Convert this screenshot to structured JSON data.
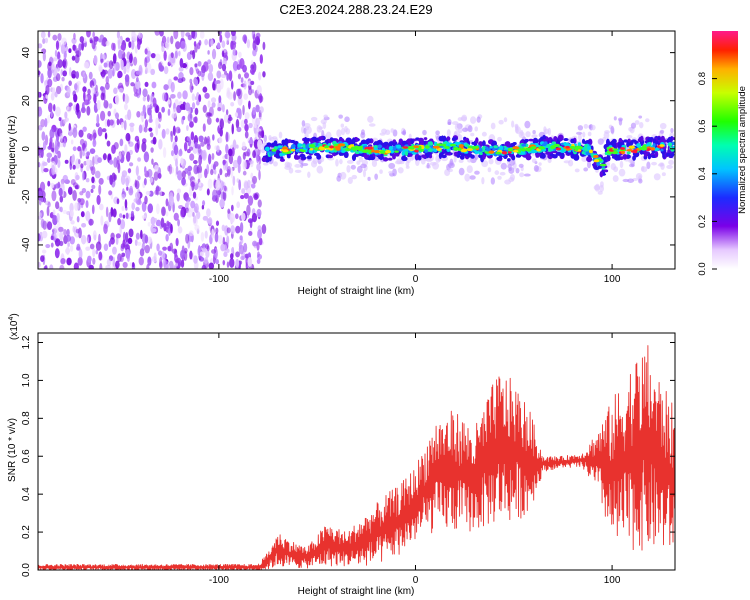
{
  "title": "C2E3.2024.288.23.24.E29",
  "chart_data": [
    {
      "type": "heatmap",
      "xlabel": "Height of straight line (km)",
      "ylabel": "Frequency (Hz)",
      "xlim": [
        -192,
        132
      ],
      "ylim": [
        -50,
        49
      ],
      "xticks": [
        -100,
        0,
        100
      ],
      "xtick_labels": [
        "-100",
        "0",
        "100"
      ],
      "yticks": [
        -40,
        -20,
        0,
        20,
        40
      ],
      "ytick_labels": [
        "-40",
        "-20",
        "0",
        "20",
        "40"
      ],
      "colorbar": {
        "label": "Normalized spectral amplitude",
        "range": [
          0,
          1
        ],
        "ticks": [
          0,
          0.2,
          0.4,
          0.6,
          0.8
        ],
        "tick_labels": [
          "0.0",
          "0.2",
          "0.4",
          "0.6",
          "0.8"
        ],
        "colormap": "rainbow"
      },
      "noise_region_x": [
        -192,
        -77
      ],
      "signal_region_x": [
        -77,
        132
      ],
      "signal_center_freq": 0,
      "grid": false
    },
    {
      "type": "line",
      "xlabel": "Height of straight line (km)",
      "ylabel": "SNR (10 * v/v)",
      "y_scale_label": "(x10",
      "y_scale_exponent": "4",
      "xlim": [
        -192,
        132
      ],
      "ylim": [
        0,
        1.25
      ],
      "xticks": [
        -100,
        0,
        100
      ],
      "xtick_labels": [
        "-100",
        "0",
        "100"
      ],
      "yticks": [
        0,
        0.2,
        0.4,
        0.6,
        0.8,
        1.0,
        1.2
      ],
      "ytick_labels": [
        "0.0",
        "0.2",
        "0.4",
        "0.6",
        "0.8",
        "1.0",
        "1.2"
      ],
      "color": "#e8322e",
      "envelope": [
        {
          "x": -192,
          "low": 0.0,
          "high": 0.03
        },
        {
          "x": -80,
          "low": 0.0,
          "high": 0.03
        },
        {
          "x": -76,
          "low": 0.0,
          "high": 0.08
        },
        {
          "x": -70,
          "low": 0.02,
          "high": 0.2
        },
        {
          "x": -62,
          "low": 0.01,
          "high": 0.15
        },
        {
          "x": -55,
          "low": 0.01,
          "high": 0.12
        },
        {
          "x": -45,
          "low": 0.02,
          "high": 0.25
        },
        {
          "x": -35,
          "low": 0.02,
          "high": 0.2
        },
        {
          "x": -25,
          "low": 0.02,
          "high": 0.3
        },
        {
          "x": -15,
          "low": 0.04,
          "high": 0.4
        },
        {
          "x": -8,
          "low": 0.08,
          "high": 0.45
        },
        {
          "x": 0,
          "low": 0.15,
          "high": 0.55
        },
        {
          "x": 10,
          "low": 0.2,
          "high": 0.8
        },
        {
          "x": 20,
          "low": 0.2,
          "high": 0.85
        },
        {
          "x": 30,
          "low": 0.2,
          "high": 0.75
        },
        {
          "x": 42,
          "low": 0.25,
          "high": 1.05
        },
        {
          "x": 50,
          "low": 0.25,
          "high": 1.0
        },
        {
          "x": 58,
          "low": 0.3,
          "high": 0.85
        },
        {
          "x": 65,
          "low": 0.52,
          "high": 0.6
        },
        {
          "x": 75,
          "low": 0.54,
          "high": 0.6
        },
        {
          "x": 85,
          "low": 0.54,
          "high": 0.62
        },
        {
          "x": 93,
          "low": 0.4,
          "high": 0.75
        },
        {
          "x": 100,
          "low": 0.12,
          "high": 0.9
        },
        {
          "x": 110,
          "low": 0.1,
          "high": 1.1
        },
        {
          "x": 118,
          "low": 0.1,
          "high": 1.2
        },
        {
          "x": 125,
          "low": 0.1,
          "high": 1.0
        },
        {
          "x": 132,
          "low": 0.08,
          "high": 0.85
        }
      ],
      "grid": false
    }
  ]
}
